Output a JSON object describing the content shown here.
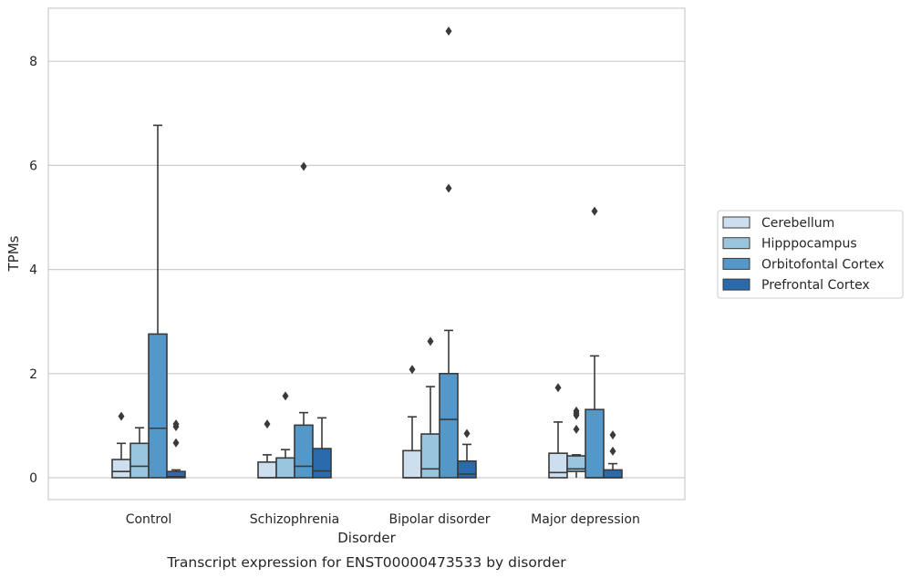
{
  "chart_data": {
    "type": "box",
    "title": "",
    "caption": "Transcript expression for ENST00000473533 by disorder",
    "xlabel": "Disorder",
    "ylabel": "TPMs",
    "ylim": [
      -0.42,
      9.05
    ],
    "yticks": [
      0,
      2,
      4,
      6,
      8
    ],
    "grid": "horizontal",
    "legend_position": "right",
    "categories": [
      "Control",
      "Schizophrenia",
      "Bipolar disorder",
      "Major depression"
    ],
    "series": [
      {
        "name": "Cerebellum",
        "color": "#cddeef",
        "boxes": [
          {
            "whisker_low": 0,
            "q1": 0,
            "median": 0.12,
            "q3": 0.35,
            "whisker_high": 0.66,
            "outliers": [
              1.18
            ]
          },
          {
            "whisker_low": 0,
            "q1": 0,
            "median": 0,
            "q3": 0.3,
            "whisker_high": 0.44,
            "outliers": [
              1.03
            ]
          },
          {
            "whisker_low": 0,
            "q1": 0,
            "median": 0,
            "q3": 0.52,
            "whisker_high": 1.17,
            "outliers": [
              2.08
            ]
          },
          {
            "whisker_low": 0,
            "q1": 0,
            "median": 0.1,
            "q3": 0.47,
            "whisker_high": 1.07,
            "outliers": [
              1.73
            ]
          }
        ]
      },
      {
        "name": "Hipppocampus",
        "color": "#9ac5df",
        "boxes": [
          {
            "whisker_low": 0,
            "q1": 0,
            "median": 0.22,
            "q3": 0.66,
            "whisker_high": 0.96,
            "outliers": []
          },
          {
            "whisker_low": 0,
            "q1": 0,
            "median": 0,
            "q3": 0.38,
            "whisker_high": 0.54,
            "outliers": [
              1.57
            ]
          },
          {
            "whisker_low": 0,
            "q1": 0,
            "median": 0.17,
            "q3": 0.84,
            "whisker_high": 1.75,
            "outliers": [
              2.62
            ]
          },
          {
            "whisker_low": 0,
            "q1": 0.12,
            "median": 0.17,
            "q3": 0.42,
            "whisker_high": 0.44,
            "outliers": [
              0.93,
              1.2,
              1.24,
              1.28
            ]
          }
        ]
      },
      {
        "name": "Orbitofontal Cortex",
        "color": "#5498c9",
        "boxes": [
          {
            "whisker_low": 0,
            "q1": 0,
            "median": 0.95,
            "q3": 2.76,
            "whisker_high": 6.77,
            "outliers": []
          },
          {
            "whisker_low": 0,
            "q1": 0,
            "median": 0.22,
            "q3": 1.01,
            "whisker_high": 1.25,
            "outliers": [
              5.98
            ]
          },
          {
            "whisker_low": 0,
            "q1": 0,
            "median": 1.12,
            "q3": 2.0,
            "whisker_high": 2.83,
            "outliers": [
              5.56,
              8.58
            ]
          },
          {
            "whisker_low": 0,
            "q1": 0,
            "median": 0,
            "q3": 1.31,
            "whisker_high": 2.34,
            "outliers": [
              5.12
            ]
          }
        ]
      },
      {
        "name": "Prefrontal Cortex",
        "color": "#2b6aab",
        "boxes": [
          {
            "whisker_low": 0,
            "q1": 0,
            "median": 0.02,
            "q3": 0.12,
            "whisker_high": 0.15,
            "outliers": [
              0.67,
              0.98,
              1.03
            ]
          },
          {
            "whisker_low": 0,
            "q1": 0,
            "median": 0.13,
            "q3": 0.56,
            "whisker_high": 1.15,
            "outliers": []
          },
          {
            "whisker_low": 0,
            "q1": 0,
            "median": 0.07,
            "q3": 0.32,
            "whisker_high": 0.64,
            "outliers": [
              0.85
            ]
          },
          {
            "whisker_low": 0,
            "q1": 0,
            "median": 0,
            "q3": 0.15,
            "whisker_high": 0.27,
            "outliers": [
              0.51,
              0.82
            ]
          }
        ]
      }
    ]
  }
}
